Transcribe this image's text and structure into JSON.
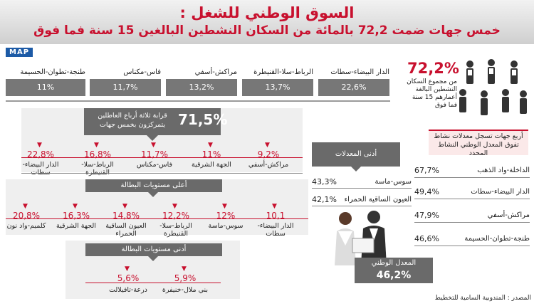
{
  "header": {
    "title": "السوق الوطني للشغل :",
    "subtitle": "خمس جهات ضمت 72,2 بالمائة من السكان النشطين البالغين 15 سنة فما فوق"
  },
  "logo": "MAP",
  "summary": {
    "value": "72,2%",
    "text_lines": [
      "من مجموع السكان",
      "النشطين البالغة",
      "أعمارهم 15 سنة",
      "فما فوق"
    ]
  },
  "chart_data": [
    {
      "type": "bar",
      "categories": [
        "الدار البيضاء-سطات",
        "الرباط-سلا-القنيطرة",
        "مراكش-أسفي",
        "فاس-مكناس",
        "طنجة-تطوان-الحسيمة"
      ],
      "value_labels": [
        "22,6%",
        "13,7%",
        "13,2%",
        "11,7%",
        "11%"
      ],
      "values": [
        22.6,
        13.7,
        13.2,
        11.7,
        11
      ]
    },
    {
      "type": "bar",
      "title": "قرابة ثلاثة أرباع العاطلين يتمركزون بخمس جهات",
      "headline": "71,5%",
      "categories": [
        "مراكش-أسفي",
        "الجهة الشرقية",
        "فاس-مكناس",
        "الرباط-سلا-القنيطرة",
        "الدار البيضاء-سطات"
      ],
      "value_labels": [
        "9,2%",
        "11%",
        "11,7%",
        "16,8%",
        "22,8%"
      ],
      "values": [
        9.2,
        11,
        11.7,
        16.8,
        22.8
      ]
    },
    {
      "type": "bar",
      "title": "أعلى مستويات البطالة",
      "categories": [
        "الدار البيضاء-سطات",
        "سوس-ماسة",
        "الرباط-سلا-القنيطرة",
        "العيون الساقية الحمراء",
        "الجهة الشرقية",
        "كلميم-واد نون"
      ],
      "value_labels": [
        "10,1",
        "12%",
        "12,2%",
        "14,8%",
        "16,3%",
        "20,8%"
      ],
      "values": [
        10.1,
        12,
        12.2,
        14.8,
        16.3,
        20.8
      ]
    },
    {
      "type": "bar",
      "title": "أدنى مستويات البطالة",
      "categories": [
        "بني ملال-خنيفرة",
        "درعة-تافيلالت"
      ],
      "value_labels": [
        "5,9%",
        "5,6%"
      ],
      "values": [
        5.9,
        5.6
      ]
    },
    {
      "type": "bar",
      "title": "أدنى المعدلات",
      "categories": [
        "سوس-ماسة",
        "العيون الساقية الحمراء"
      ],
      "value_labels": [
        "43,3%",
        "42,1%"
      ],
      "values": [
        43.3,
        42.1
      ]
    },
    {
      "type": "bar",
      "title": "أربع جهات تسجل معدلات نشاط تفوق المعدل الوطني النشاط المحدد",
      "categories": [
        "الداخلة-واد الذهب",
        "الدار البيضاء-سطات",
        "مراكش-أسفي",
        "طنجة-تطوان-الحسيمة"
      ],
      "value_labels": [
        "67,7%",
        "49,4%",
        "47,9%",
        "46,6%"
      ],
      "values": [
        67.7,
        49.4,
        47.9,
        46.6
      ]
    }
  ],
  "national": {
    "label": "المعدل الوطني",
    "value": "46,2%"
  },
  "source": "المصدر : المندوبية السامية للتخطيط",
  "colors": {
    "accent": "#c8102e",
    "box": "#777777",
    "header_bg": "#d6d6d6"
  }
}
